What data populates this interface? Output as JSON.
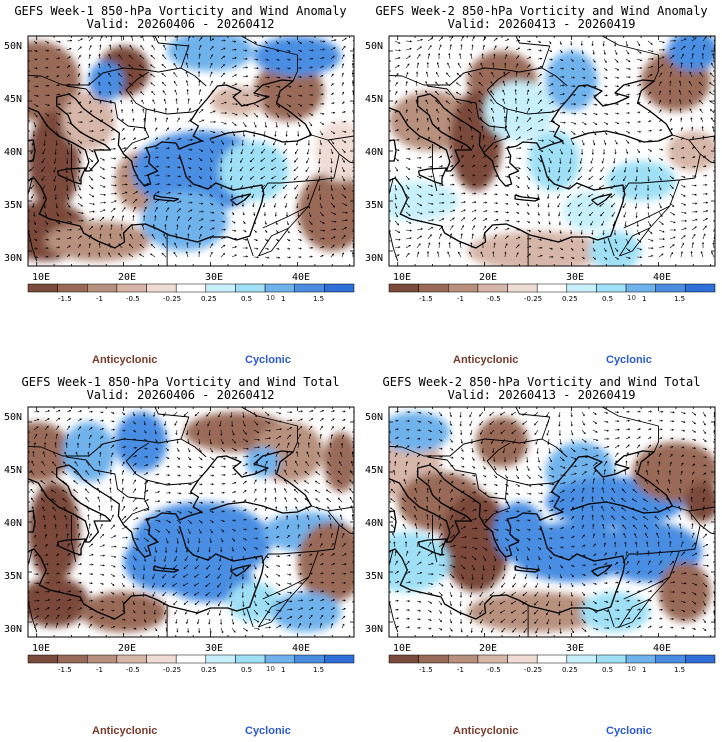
{
  "colors": {
    "scale": [
      "#7a4a3a",
      "#9a6a58",
      "#b8907e",
      "#d6b6a8",
      "#efdcd4",
      "#ffffff",
      "#c8f0fb",
      "#9fe0f6",
      "#6fb2ec",
      "#4a8ee2",
      "#2f6fd8"
    ],
    "anticyclonic": "#7a3b2a",
    "cyclonic": "#2a5ad0"
  },
  "axes": {
    "lat_labels": [
      "50N",
      "45N",
      "40N",
      "35N",
      "30N"
    ],
    "lon_labels": [
      "10E",
      "20E",
      "30E",
      "40E"
    ]
  },
  "colorbar": {
    "labels": [
      "-1.5",
      "-1",
      "-0.5",
      "-0.25",
      "0.25",
      "0.5",
      "1",
      "1.5"
    ],
    "scale_label": "10"
  },
  "legend": {
    "anticyclonic": "Anticyclonic",
    "cyclonic": "Cyclonic"
  },
  "panels": [
    {
      "title": "GEFS Week-1 850-hPa Vorticity and Wind Anomaly",
      "valid": "Valid: 20260406 - 20260412"
    },
    {
      "title": "GEFS Week-2 850-hPa Vorticity and Wind Anomaly",
      "valid": "Valid: 20260413 - 20260419"
    },
    {
      "title": "GEFS Week-1 850-hPa Vorticity and Wind Total",
      "valid": "Valid: 20260406 - 20260412"
    },
    {
      "title": "GEFS Week-2 850-hPa Vorticity and Wind Total",
      "valid": "Valid: 20260413 - 20260419"
    }
  ]
}
